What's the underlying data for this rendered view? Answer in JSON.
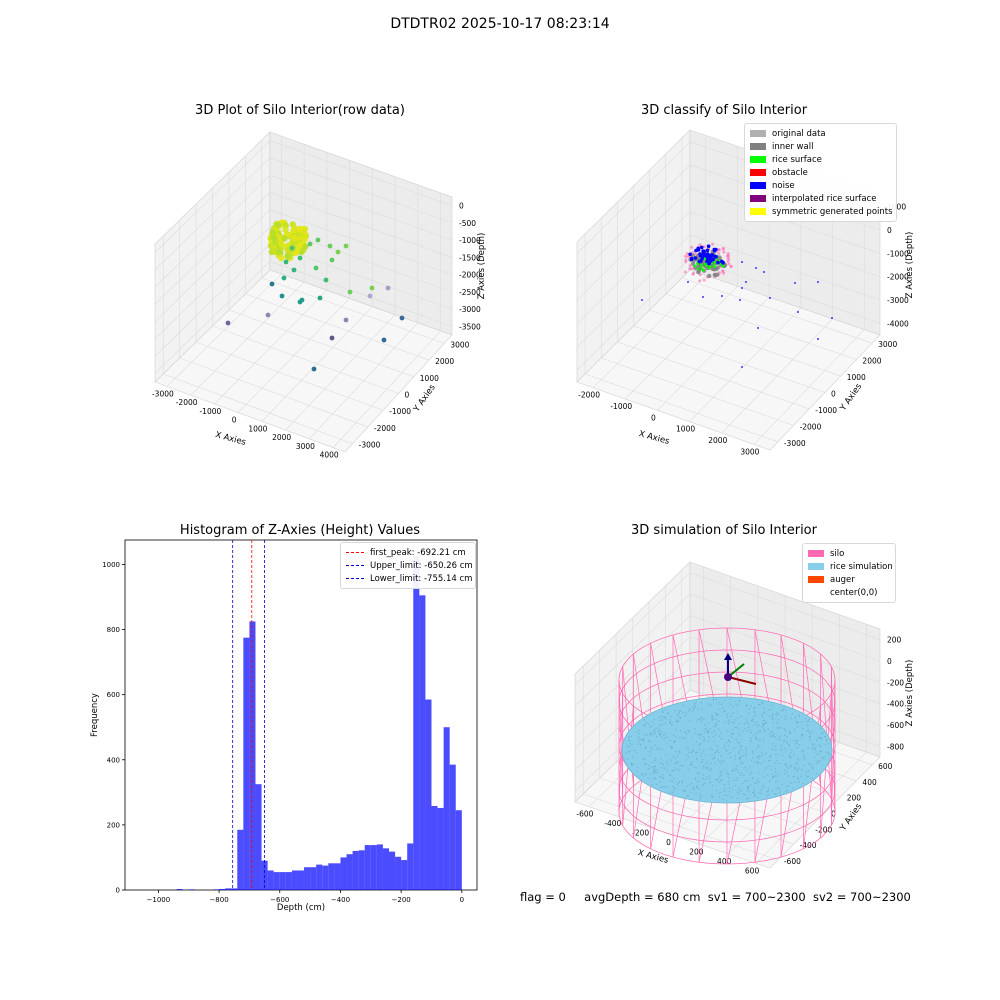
{
  "suptitle": "DTDTR02 2025-10-17 08:23:14",
  "footer": {
    "flag": "flag = 0",
    "avg_depth": "avgDepth = 680 cm",
    "sv1": "sv1 = 700~2300",
    "sv2": "sv2 = 700~2300"
  },
  "chart_data": [
    {
      "type": "scatter",
      "title": "3D Plot of Silo Interior(row data)",
      "xlabel": "X Axies",
      "ylabel": "Y Axies",
      "zlabel": "Z Axies (Depth)",
      "x_ticks": [
        "-3000",
        "-2000",
        "-1000",
        "0",
        "1000",
        "2000",
        "3000",
        "4000"
      ],
      "y_ticks": [
        "-3000",
        "-2000",
        "-1000",
        "0",
        "1000",
        "2000",
        "3000"
      ],
      "z_ticks": [
        "0",
        "-500",
        "-1000",
        "-1500",
        "-2000",
        "-2500",
        "-3000",
        "-3500"
      ],
      "colormap": "viridis"
    },
    {
      "type": "scatter",
      "title": "3D classify of Silo Interior",
      "xlabel": "X Axies",
      "ylabel": "Y Axies",
      "zlabel": "Z Axies (Depth)",
      "x_ticks": [
        "-2000",
        "-1000",
        "0",
        "1000",
        "2000",
        "3000"
      ],
      "y_ticks": [
        "-3000",
        "-2000",
        "-1000",
        "0",
        "1000",
        "2000",
        "3000"
      ],
      "z_ticks": [
        "1000",
        "0",
        "-1000",
        "-2000",
        "-3000",
        "-4000"
      ],
      "legend": [
        {
          "label": "original data",
          "color": "#b0b0b0"
        },
        {
          "label": "inner wall",
          "color": "#808080"
        },
        {
          "label": "rice surface",
          "color": "#00ff00"
        },
        {
          "label": "obstacle",
          "color": "#ff0000"
        },
        {
          "label": "noise",
          "color": "#0000ff"
        },
        {
          "label": "interpolated rice surface",
          "color": "#800080"
        },
        {
          "label": "symmetric generated points",
          "color": "#ffff00"
        }
      ],
      "legend_position": "top-right"
    },
    {
      "type": "bar",
      "title": "Histogram of Z-Axies (Height) Values",
      "xlabel": "Depth (cm)",
      "ylabel": "Frequency",
      "xlim": [
        -1110,
        50
      ],
      "ylim": [
        0,
        1075
      ],
      "bin_width": 20,
      "x_ticks": [
        -1000,
        -800,
        -600,
        -400,
        -200,
        0
      ],
      "y_ticks": [
        0,
        200,
        400,
        600,
        800,
        1000
      ],
      "bar_color": "#0000ff",
      "bins": [
        {
          "start": -940,
          "count": 3
        },
        {
          "start": -900,
          "count": 2
        },
        {
          "start": -820,
          "count": 2
        },
        {
          "start": -800,
          "count": 3
        },
        {
          "start": -780,
          "count": 5
        },
        {
          "start": -760,
          "count": 5
        },
        {
          "start": -740,
          "count": 185
        },
        {
          "start": -720,
          "count": 775
        },
        {
          "start": -700,
          "count": 825
        },
        {
          "start": -680,
          "count": 325
        },
        {
          "start": -660,
          "count": 90
        },
        {
          "start": -640,
          "count": 60
        },
        {
          "start": -620,
          "count": 55
        },
        {
          "start": -600,
          "count": 55
        },
        {
          "start": -580,
          "count": 55
        },
        {
          "start": -560,
          "count": 60
        },
        {
          "start": -540,
          "count": 60
        },
        {
          "start": -520,
          "count": 70
        },
        {
          "start": -500,
          "count": 70
        },
        {
          "start": -480,
          "count": 78
        },
        {
          "start": -460,
          "count": 75
        },
        {
          "start": -440,
          "count": 82
        },
        {
          "start": -420,
          "count": 82
        },
        {
          "start": -400,
          "count": 100
        },
        {
          "start": -380,
          "count": 110
        },
        {
          "start": -360,
          "count": 120
        },
        {
          "start": -340,
          "count": 122
        },
        {
          "start": -320,
          "count": 138
        },
        {
          "start": -300,
          "count": 138
        },
        {
          "start": -280,
          "count": 140
        },
        {
          "start": -260,
          "count": 128
        },
        {
          "start": -240,
          "count": 118
        },
        {
          "start": -220,
          "count": 102
        },
        {
          "start": -200,
          "count": 92
        },
        {
          "start": -180,
          "count": 143
        },
        {
          "start": -160,
          "count": 1025
        },
        {
          "start": -140,
          "count": 905
        },
        {
          "start": -120,
          "count": 585
        },
        {
          "start": -100,
          "count": 258
        },
        {
          "start": -80,
          "count": 252
        },
        {
          "start": -60,
          "count": 500
        },
        {
          "start": -40,
          "count": 385
        },
        {
          "start": -20,
          "count": 245
        }
      ],
      "vlines": [
        {
          "label": "first_peak: -692.21 cm",
          "value": -692.21,
          "color": "#ff0000"
        },
        {
          "label": "Upper_limit: -650.26 cm",
          "value": -650.26,
          "color": "#0000cc"
        },
        {
          "label": "Lower_limit: -755.14 cm",
          "value": -755.14,
          "color": "#0000cc"
        }
      ],
      "legend_position": "top-right"
    },
    {
      "type": "scatter",
      "title": "3D simulation of Silo Interior",
      "xlabel": "X Axies",
      "ylabel": "Y Axies",
      "zlabel": "Z Axies (Depth)",
      "x_ticks": [
        "-600",
        "-400",
        "-200",
        "0",
        "200",
        "400",
        "600"
      ],
      "y_ticks": [
        "-600",
        "-400",
        "-200",
        "0",
        "200",
        "400",
        "600"
      ],
      "z_ticks": [
        "200",
        "0",
        "-200",
        "-400",
        "-600",
        "-800"
      ],
      "legend": [
        {
          "label": "silo",
          "color": "#ff69b4"
        },
        {
          "label": "rice simulation",
          "color": "#87ceeb"
        },
        {
          "label": "auger",
          "color": "#ff4500"
        },
        {
          "label": "center(0,0)",
          "color": "#ffffff"
        }
      ],
      "legend_position": "top-right"
    }
  ]
}
